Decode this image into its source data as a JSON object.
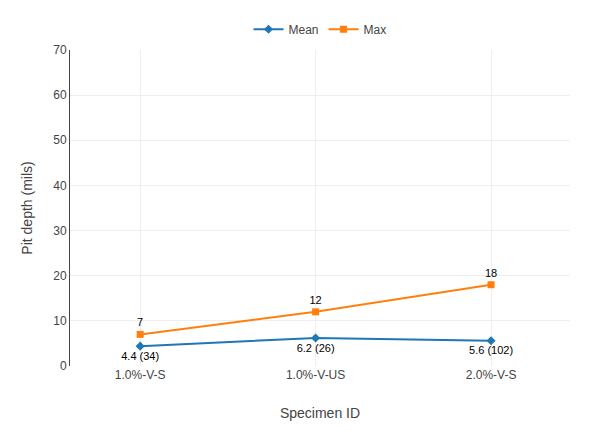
{
  "chart_data": {
    "type": "line",
    "categories": [
      "1.0%-V-S",
      "1.0%-V-US",
      "2.0%-V-S"
    ],
    "series": [
      {
        "name": "Mean",
        "values": [
          4.4,
          6.2,
          5.6
        ],
        "value_labels": [
          "4.4 (34)",
          "6.2 (26)",
          "5.6 (102)"
        ],
        "marker": "diamond"
      },
      {
        "name": "Max",
        "values": [
          7,
          12,
          18
        ],
        "marker": "square"
      }
    ],
    "xlabel": "Specimen ID",
    "ylabel": "Pit depth (mils)",
    "ylim": [
      0,
      70
    ],
    "yticks": [
      0,
      10,
      20,
      30,
      40,
      50,
      60,
      70
    ],
    "grid": true,
    "legend": "top",
    "data_labels": true
  }
}
